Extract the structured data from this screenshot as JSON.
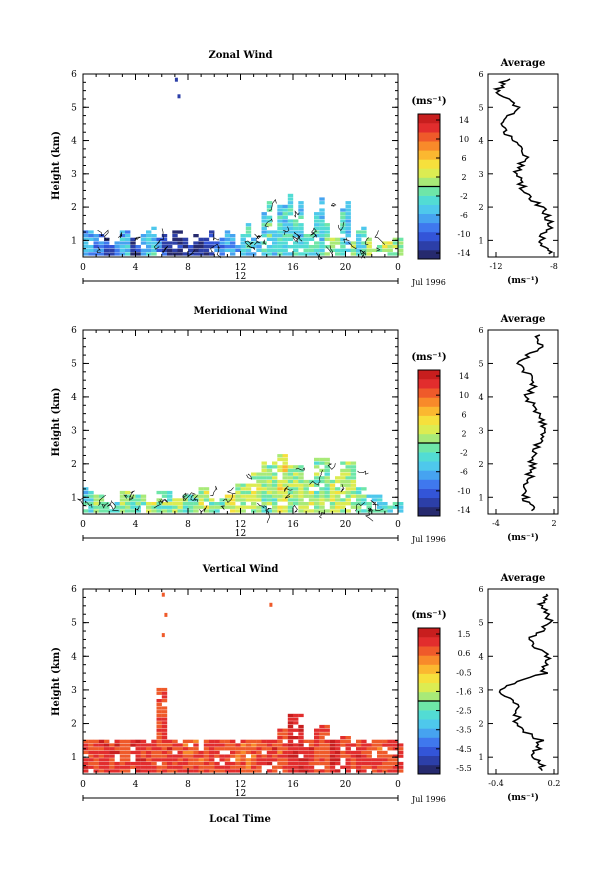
{
  "panels": [
    {
      "title": "Zonal Wind",
      "ylabel": "Height (km)",
      "xticks": [
        "0",
        "4",
        "8",
        "12",
        "16",
        "20",
        "0"
      ],
      "yticks": [
        "1",
        "2",
        "3",
        "4",
        "5",
        "6"
      ],
      "day_label": "12",
      "month_label": "Jul 1996",
      "colorbar_unit": "(ms⁻¹)",
      "colorbar_labels": [
        "14",
        "10",
        "6",
        "2",
        "-2",
        "-6",
        "-10",
        "-14"
      ],
      "avg_title": "Average",
      "avg_xticks": [
        "-12",
        "-8"
      ],
      "avg_unit": "(ms⁻¹)",
      "avg_yticks": [
        "1",
        "2",
        "3",
        "4",
        "5",
        "6"
      ]
    },
    {
      "title": "Meridional Wind",
      "ylabel": "Height (km)",
      "xticks": [
        "0",
        "4",
        "8",
        "12",
        "16",
        "20",
        "0"
      ],
      "yticks": [
        "1",
        "2",
        "3",
        "4",
        "5",
        "6"
      ],
      "day_label": "12",
      "month_label": "Jul 1996",
      "colorbar_unit": "(ms⁻¹)",
      "colorbar_labels": [
        "14",
        "10",
        "6",
        "2",
        "-2",
        "-6",
        "-10",
        "-14"
      ],
      "avg_title": "Average",
      "avg_xticks": [
        "-4",
        "2"
      ],
      "avg_unit": "(ms⁻¹)",
      "avg_yticks": [
        "1",
        "2",
        "3",
        "4",
        "5",
        "6"
      ]
    },
    {
      "title": "Vertical Wind",
      "ylabel": "Height (km)",
      "xticks": [
        "0",
        "4",
        "8",
        "12",
        "16",
        "20",
        "0"
      ],
      "yticks": [
        "1",
        "2",
        "3",
        "4",
        "5",
        "6"
      ],
      "day_label": "12",
      "month_label": "Jul 1996",
      "colorbar_unit": "(ms⁻¹)",
      "colorbar_labels": [
        "1.5",
        "0.6",
        "-0.5",
        "-1.6",
        "-2.5",
        "-3.5",
        "-4.5",
        "-5.5"
      ],
      "avg_title": "Average",
      "avg_xticks": [
        "-0.4",
        "0.2"
      ],
      "avg_unit": "(ms⁻¹)",
      "avg_yticks": [
        "1",
        "2",
        "3",
        "4",
        "5",
        "6"
      ]
    }
  ],
  "xlabel": "Local Time",
  "colormap": [
    "#262a6e",
    "#2c3fa8",
    "#3355d8",
    "#3f78ee",
    "#46a3f0",
    "#4ec8ec",
    "#52dcd4",
    "#6ee6a8",
    "#a8ea78",
    "#dcec52",
    "#f6e03c",
    "#fbb830",
    "#f88a2a",
    "#ef5a2a",
    "#e22d2d",
    "#c81e1e"
  ],
  "chart_data": [
    {
      "type": "heatmap",
      "title": "Zonal Wind",
      "xlabel": "",
      "ylabel": "Height (km)",
      "x_range_hours": [
        0,
        24
      ],
      "y_range_km": [
        0.5,
        6
      ],
      "colorbar_range": [
        -14,
        14
      ],
      "cells": [
        {
          "t": 7,
          "h": 5.8,
          "v": -12
        },
        {
          "t": 7.2,
          "h": 5.3,
          "v": -12
        },
        {
          "t": 0.5,
          "h": 1.3,
          "v": -6
        },
        {
          "t": 1,
          "h": 1.2,
          "v": -8
        },
        {
          "t": 1.5,
          "h": 1.0,
          "v": -10
        },
        {
          "t": 2,
          "h": 0.8,
          "v": -9
        },
        {
          "t": 2.5,
          "h": 1.1,
          "v": -7
        },
        {
          "t": 3,
          "h": 1.3,
          "v": -5
        },
        {
          "t": 3.5,
          "h": 1.0,
          "v": -11
        },
        {
          "t": 4,
          "h": 0.8,
          "v": -10
        },
        {
          "t": 4.5,
          "h": 1.2,
          "v": -6
        },
        {
          "t": 5,
          "h": 1.4,
          "v": -4
        },
        {
          "t": 5.5,
          "h": 1.0,
          "v": -8
        },
        {
          "t": 6,
          "h": 1.2,
          "v": -10
        },
        {
          "t": 6.5,
          "h": 0.9,
          "v": -12
        },
        {
          "t": 7,
          "h": 1.3,
          "v": -12
        },
        {
          "t": 7.5,
          "h": 1.1,
          "v": -13
        },
        {
          "t": 8,
          "h": 0.8,
          "v": -12
        },
        {
          "t": 8.5,
          "h": 1.2,
          "v": -13
        },
        {
          "t": 9,
          "h": 1.0,
          "v": -12
        },
        {
          "t": 9.5,
          "h": 1.3,
          "v": -10
        },
        {
          "t": 10,
          "h": 0.9,
          "v": -8
        },
        {
          "t": 10.5,
          "h": 1.1,
          "v": -7
        },
        {
          "t": 11,
          "h": 1.3,
          "v": -6
        },
        {
          "t": 11.5,
          "h": 0.8,
          "v": -9
        },
        {
          "t": 12,
          "h": 1.2,
          "v": -5
        },
        {
          "t": 12.5,
          "h": 1.5,
          "v": -3
        },
        {
          "t": 13,
          "h": 1.0,
          "v": -4
        },
        {
          "t": 13.5,
          "h": 1.8,
          "v": -3
        },
        {
          "t": 14,
          "h": 2.2,
          "v": -2
        },
        {
          "t": 14.5,
          "h": 1.3,
          "v": -4
        },
        {
          "t": 15,
          "h": 2.0,
          "v": -3
        },
        {
          "t": 15.5,
          "h": 2.4,
          "v": -2
        },
        {
          "t": 16,
          "h": 1.6,
          "v": -3
        },
        {
          "t": 16.5,
          "h": 2.1,
          "v": -4
        },
        {
          "t": 17,
          "h": 1.2,
          "v": -2
        },
        {
          "t": 17.5,
          "h": 1.8,
          "v": -3
        },
        {
          "t": 18,
          "h": 2.3,
          "v": -4
        },
        {
          "t": 18.5,
          "h": 1.5,
          "v": -2
        },
        {
          "t": 19,
          "h": 1.0,
          "v": 0
        },
        {
          "t": 19.5,
          "h": 1.9,
          "v": -3
        },
        {
          "t": 20,
          "h": 2.2,
          "v": -4
        },
        {
          "t": 20.5,
          "h": 0.9,
          "v": 1
        },
        {
          "t": 21,
          "h": 1.4,
          "v": -2
        },
        {
          "t": 21.5,
          "h": 1.0,
          "v": 1
        },
        {
          "t": 22,
          "h": 0.8,
          "v": 2
        },
        {
          "t": 22.5,
          "h": 1.1,
          "v": 1
        },
        {
          "t": 23,
          "h": 0.9,
          "v": 2
        },
        {
          "t": 23.5,
          "h": 1.0,
          "v": 1
        }
      ],
      "average_profile": {
        "x_range": [
          -13,
          -7
        ],
        "height_km": [
          0.6,
          1.0,
          1.5,
          2.0,
          2.5,
          3.0,
          3.5,
          4.0,
          4.5,
          5.0,
          5.5,
          5.9
        ],
        "value_ms": [
          -7.5,
          -8.6,
          -7.6,
          -8.4,
          -10.0,
          -10.5,
          -9.8,
          -10.8,
          -12.0,
          -10.5,
          -12.3,
          -11.2
        ]
      }
    },
    {
      "type": "heatmap",
      "title": "Meridional Wind",
      "xlabel": "",
      "ylabel": "Height (km)",
      "x_range_hours": [
        0,
        24
      ],
      "y_range_km": [
        0.5,
        6
      ],
      "colorbar_range": [
        -14,
        14
      ],
      "cells": [
        {
          "t": 0.5,
          "h": 1.3,
          "v": -3
        },
        {
          "t": 1,
          "h": 1.0,
          "v": 0
        },
        {
          "t": 2,
          "h": 0.8,
          "v": -2
        },
        {
          "t": 3,
          "h": 1.2,
          "v": 1
        },
        {
          "t": 4,
          "h": 1.0,
          "v": -1
        },
        {
          "t": 5,
          "h": 0.8,
          "v": 2
        },
        {
          "t": 6,
          "h": 1.2,
          "v": 0
        },
        {
          "t": 7,
          "h": 0.9,
          "v": 1
        },
        {
          "t": 8,
          "h": 1.1,
          "v": -1
        },
        {
          "t": 9,
          "h": 1.3,
          "v": 2
        },
        {
          "t": 10,
          "h": 0.9,
          "v": 0
        },
        {
          "t": 11,
          "h": 1.1,
          "v": 3
        },
        {
          "t": 12,
          "h": 1.4,
          "v": 1
        },
        {
          "t": 13,
          "h": 1.7,
          "v": 2
        },
        {
          "t": 14,
          "h": 2.0,
          "v": 0
        },
        {
          "t": 15,
          "h": 2.3,
          "v": 3
        },
        {
          "t": 16,
          "h": 1.9,
          "v": 1
        },
        {
          "t": 17,
          "h": 1.5,
          "v": 2
        },
        {
          "t": 18,
          "h": 2.1,
          "v": 0
        },
        {
          "t": 19,
          "h": 1.6,
          "v": 2
        },
        {
          "t": 20,
          "h": 2.0,
          "v": 1
        },
        {
          "t": 21,
          "h": 1.3,
          "v": -1
        },
        {
          "t": 22,
          "h": 1.0,
          "v": -2
        },
        {
          "t": 23,
          "h": 0.8,
          "v": -3
        }
      ],
      "average_profile": {
        "x_range": [
          -4,
          2.5
        ],
        "height_km": [
          0.6,
          1.0,
          1.5,
          2.0,
          2.5,
          3.0,
          3.5,
          4.0,
          4.5,
          5.0,
          5.5,
          5.9
        ],
        "value_ms": [
          0.3,
          -0.6,
          -0.2,
          0.1,
          0.6,
          1.4,
          0.8,
          -0.4,
          0.4,
          -1.4,
          0.8,
          0.5
        ]
      }
    },
    {
      "type": "heatmap",
      "title": "Vertical Wind",
      "xlabel": "Local Time",
      "ylabel": "Height (km)",
      "x_range_hours": [
        0,
        24
      ],
      "y_range_km": [
        0.5,
        6
      ],
      "colorbar_range": [
        -5.5,
        1.5
      ],
      "cells": [
        {
          "t": 6,
          "h": 5.8,
          "v": 0.6
        },
        {
          "t": 6.2,
          "h": 5.2,
          "v": 0.6
        },
        {
          "t": 6.0,
          "h": 4.6,
          "v": 0.6
        },
        {
          "t": 5.8,
          "h": 3.0,
          "v": 0.6
        },
        {
          "t": 14.2,
          "h": 5.5,
          "v": 0.6
        },
        {
          "t": 0.5,
          "h": 1.2,
          "v": 0.7
        },
        {
          "t": 2,
          "h": 0.9,
          "v": 0.8
        },
        {
          "t": 3,
          "h": 1.4,
          "v": 0.6
        },
        {
          "t": 4,
          "h": 1.0,
          "v": 0.9
        },
        {
          "t": 5,
          "h": 0.8,
          "v": 0.6
        },
        {
          "t": 7,
          "h": 1.2,
          "v": 0.7
        },
        {
          "t": 8,
          "h": 0.9,
          "v": 0.5
        },
        {
          "t": 10,
          "h": 1.3,
          "v": 0.6
        },
        {
          "t": 12,
          "h": 1.0,
          "v": 0.4
        },
        {
          "t": 14,
          "h": 1.5,
          "v": 0.7
        },
        {
          "t": 15,
          "h": 1.8,
          "v": 0.5
        },
        {
          "t": 16,
          "h": 2.3,
          "v": 1.0
        },
        {
          "t": 17,
          "h": 1.4,
          "v": 0.8
        },
        {
          "t": 18,
          "h": 1.9,
          "v": 0.6
        },
        {
          "t": 19,
          "h": 1.1,
          "v": 1.2
        },
        {
          "t": 20,
          "h": 1.6,
          "v": 0.6
        },
        {
          "t": 21,
          "h": 1.0,
          "v": 0.7
        },
        {
          "t": 22,
          "h": 1.3,
          "v": 0.5
        },
        {
          "t": 23,
          "h": 0.8,
          "v": 0.6
        }
      ],
      "average_profile": {
        "x_range": [
          -0.4,
          0.2
        ],
        "height_km": [
          0.6,
          1.0,
          1.5,
          2.0,
          2.5,
          3.0,
          3.5,
          4.0,
          4.5,
          5.0,
          5.5,
          5.9
        ],
        "value_ms": [
          0.08,
          0.0,
          0.05,
          -0.18,
          -0.12,
          -0.32,
          0.08,
          0.1,
          -0.05,
          0.15,
          0.05,
          0.12
        ]
      }
    }
  ]
}
